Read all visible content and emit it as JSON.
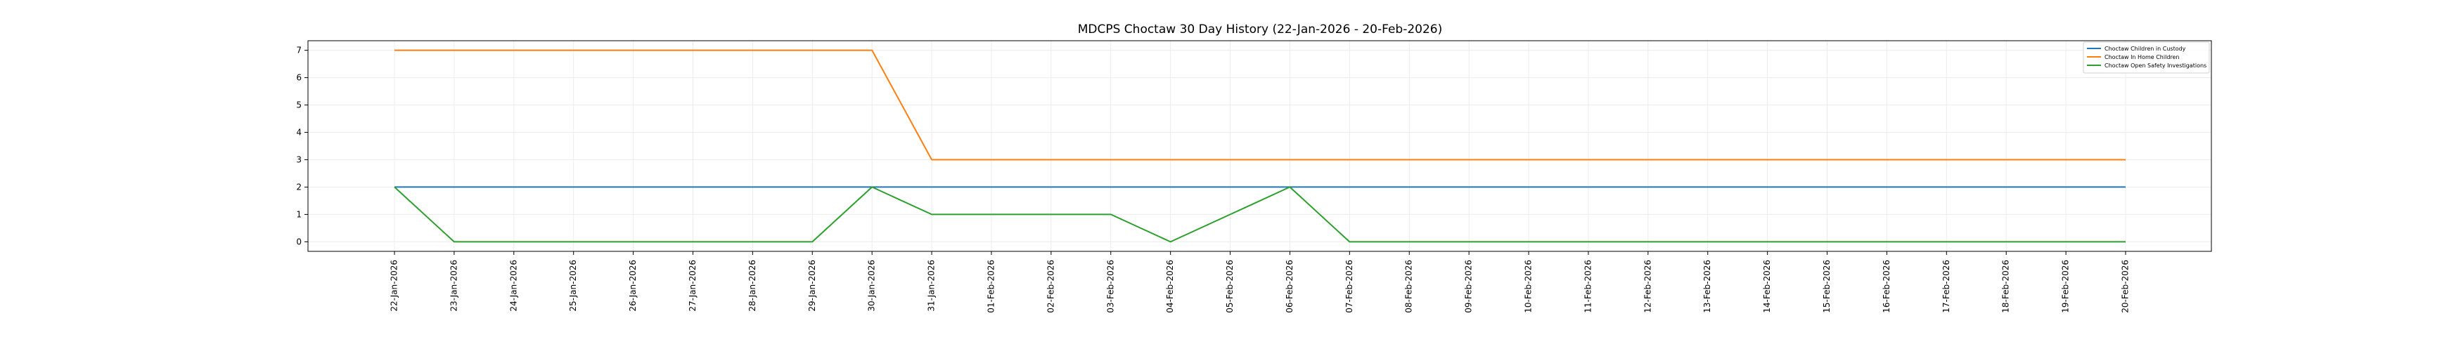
{
  "chart_data": {
    "type": "line",
    "title": "MDCPS Choctaw 30 Day History (22-Jan-2026 - 20-Feb-2026)",
    "xlabel": "",
    "ylabel": "",
    "categories": [
      "22-Jan-2026",
      "23-Jan-2026",
      "24-Jan-2026",
      "25-Jan-2026",
      "26-Jan-2026",
      "27-Jan-2026",
      "28-Jan-2026",
      "29-Jan-2026",
      "30-Jan-2026",
      "31-Jan-2026",
      "01-Feb-2026",
      "02-Feb-2026",
      "03-Feb-2026",
      "04-Feb-2026",
      "05-Feb-2026",
      "06-Feb-2026",
      "07-Feb-2026",
      "08-Feb-2026",
      "09-Feb-2026",
      "10-Feb-2026",
      "11-Feb-2026",
      "12-Feb-2026",
      "13-Feb-2026",
      "14-Feb-2026",
      "15-Feb-2026",
      "16-Feb-2026",
      "17-Feb-2026",
      "18-Feb-2026",
      "19-Feb-2026",
      "20-Feb-2026"
    ],
    "yticks": [
      0,
      1,
      2,
      3,
      4,
      5,
      6,
      7
    ],
    "ylim": [
      -0.35,
      7.35
    ],
    "grid": true,
    "legend_position": "top-right",
    "series": [
      {
        "name": "Choctaw Children in Custody",
        "color": "#1f77b4",
        "values": [
          2,
          2,
          2,
          2,
          2,
          2,
          2,
          2,
          2,
          2,
          2,
          2,
          2,
          2,
          2,
          2,
          2,
          2,
          2,
          2,
          2,
          2,
          2,
          2,
          2,
          2,
          2,
          2,
          2,
          2
        ]
      },
      {
        "name": "Choctaw In Home Children",
        "color": "#ff7f0e",
        "values": [
          7,
          7,
          7,
          7,
          7,
          7,
          7,
          7,
          7,
          3,
          3,
          3,
          3,
          3,
          3,
          3,
          3,
          3,
          3,
          3,
          3,
          3,
          3,
          3,
          3,
          3,
          3,
          3,
          3,
          3
        ]
      },
      {
        "name": "Choctaw Open Safety Investigations",
        "color": "#2ca02c",
        "values": [
          2,
          0,
          0,
          0,
          0,
          0,
          0,
          0,
          2,
          1,
          1,
          1,
          1,
          0,
          1,
          2,
          0,
          0,
          0,
          0,
          0,
          0,
          0,
          0,
          0,
          0,
          0,
          0,
          0,
          0
        ]
      }
    ]
  }
}
